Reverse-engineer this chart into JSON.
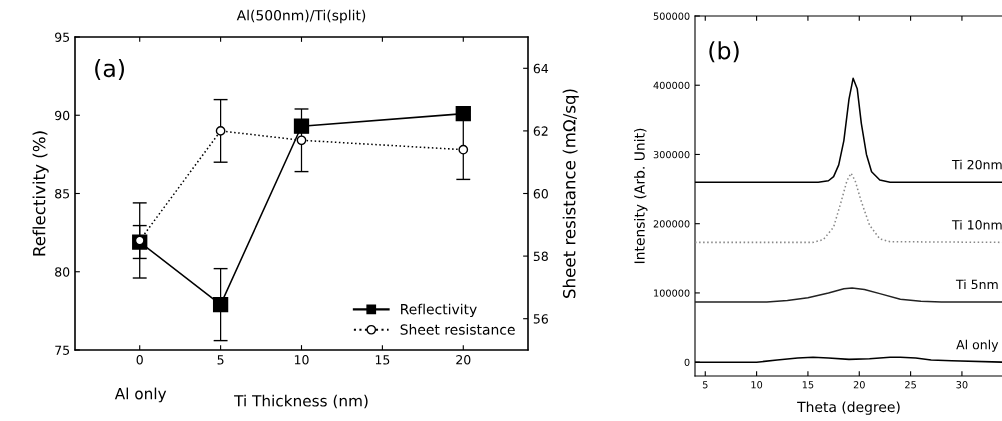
{
  "chart_data": [
    {
      "type": "line",
      "title": "Al(500nm)/Ti(split)",
      "xlabel": "Ti Thickness (nm)",
      "ylabel": "Reflectivity (%)",
      "y2label": "Sheet resistance (mΩ/sq)",
      "annotations": [
        "(a)",
        "Al only"
      ],
      "x": [
        0,
        5,
        10,
        20
      ],
      "xlim": [
        -4,
        24
      ],
      "xticks": [
        0,
        5,
        10,
        15,
        20
      ],
      "ylim": [
        75,
        95
      ],
      "yticks": [
        75,
        80,
        85,
        90,
        95
      ],
      "y2lim": [
        55,
        65
      ],
      "y2ticks": [
        56,
        58,
        60,
        62,
        64
      ],
      "series": [
        {
          "name": "Reflectivity",
          "color": "#000000",
          "marker": "square",
          "line_style": "solid",
          "values": [
            81.9,
            77.9,
            89.3,
            90.1
          ],
          "errors": [
            1.05,
            2.3,
            0.4,
            0.2
          ]
        },
        {
          "name": "Sheet resistance",
          "color": "#000000",
          "marker": "circle",
          "line_style": "dotted",
          "axis": "y2",
          "values": [
            58.5,
            62.0,
            61.7,
            61.4
          ],
          "errors": [
            1.2,
            1.0,
            1.0,
            0.95
          ]
        }
      ],
      "legend": "bottom right",
      "grid": false
    },
    {
      "type": "line",
      "xlabel": "Theta (degree)",
      "ylabel": "Intensity (Arb. Unit)",
      "annotations": [
        "(b)"
      ],
      "xlim": [
        4,
        34
      ],
      "xticks": [
        5,
        10,
        15,
        20,
        25,
        30
      ],
      "ylim": [
        -20000,
        500000
      ],
      "yticks": [
        0,
        100000,
        200000,
        300000,
        400000,
        500000
      ],
      "legend": false,
      "grid": false,
      "series": [
        {
          "name": "Ti 20nm",
          "color": "#000000",
          "line_style": "solid",
          "x": [
            4,
            16,
            17,
            17.5,
            18,
            18.5,
            19,
            19.4,
            19.8,
            20.2,
            20.7,
            21.2,
            22,
            23,
            34
          ],
          "values": [
            260000,
            260000,
            262000,
            268000,
            285000,
            320000,
            380000,
            410000,
            395000,
            345000,
            300000,
            275000,
            263000,
            260000,
            260000
          ]
        },
        {
          "name": "Ti 10nm",
          "color": "#888888",
          "line_style": "dotted",
          "x": [
            4,
            15.5,
            16.5,
            17.5,
            18.2,
            18.8,
            19.2,
            19.6,
            20.2,
            21,
            22,
            23,
            34
          ],
          "values": [
            173000,
            173000,
            177000,
            195000,
            230000,
            262000,
            273000,
            262000,
            232000,
            198000,
            178000,
            174000,
            173000
          ]
        },
        {
          "name": "Ti 5nm",
          "color": "#222222",
          "line_style": "solid",
          "x": [
            4,
            11,
            13,
            15,
            17,
            18.5,
            19.3,
            20.5,
            22,
            24,
            26,
            28,
            34
          ],
          "values": [
            87000,
            87000,
            89000,
            93000,
            100000,
            106000,
            107000,
            105000,
            99000,
            91000,
            88000,
            87000,
            87000
          ]
        },
        {
          "name": "Al only",
          "color": "#000000",
          "line_style": "solid",
          "x": [
            4,
            10,
            12,
            14,
            15.5,
            17,
            19,
            21,
            23,
            24,
            25.5,
            27,
            29,
            34
          ],
          "values": [
            0,
            0,
            3000,
            6000,
            7000,
            6000,
            4000,
            5000,
            7000,
            7000,
            6000,
            3000,
            2000,
            0
          ]
        }
      ]
    }
  ]
}
